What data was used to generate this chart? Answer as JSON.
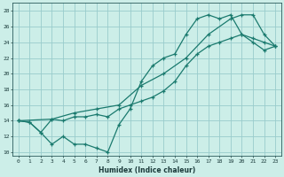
{
  "title": "",
  "xlabel": "Humidex (Indice chaleur)",
  "bg_color": "#cceee8",
  "grid_color": "#99cccc",
  "line_color": "#1a7a6e",
  "xlim": [
    -0.5,
    23.5
  ],
  "ylim": [
    9.5,
    29
  ],
  "xticks": [
    0,
    1,
    2,
    3,
    4,
    5,
    6,
    7,
    8,
    9,
    10,
    11,
    12,
    13,
    14,
    15,
    16,
    17,
    18,
    19,
    20,
    21,
    22,
    23
  ],
  "yticks": [
    10,
    12,
    14,
    16,
    18,
    20,
    22,
    24,
    26,
    28
  ],
  "line1_x": [
    0,
    1,
    2,
    3,
    4,
    5,
    6,
    7,
    8,
    9,
    10,
    11,
    12,
    13,
    14,
    15,
    16,
    17,
    18,
    19,
    20,
    21,
    22,
    23
  ],
  "line1_y": [
    14,
    13.8,
    12.5,
    14.2,
    14.0,
    14.5,
    14.5,
    14.8,
    14.5,
    15.5,
    16.0,
    16.5,
    17.0,
    17.8,
    19.0,
    21.0,
    22.5,
    23.5,
    24.0,
    24.5,
    25.0,
    24.0,
    23.0,
    23.5
  ],
  "line2_x": [
    0,
    1,
    2,
    3,
    4,
    5,
    6,
    7,
    8,
    9,
    10,
    11,
    12,
    13,
    14,
    15,
    16,
    17,
    18,
    19,
    20,
    21,
    22,
    23
  ],
  "line2_y": [
    14,
    13.8,
    12.5,
    11.0,
    12.0,
    11.0,
    11.0,
    10.5,
    10.0,
    13.5,
    15.5,
    19.0,
    21.0,
    22.0,
    22.5,
    25.0,
    27.0,
    27.5,
    27.0,
    27.5,
    25.0,
    24.5,
    24.0,
    23.5
  ],
  "line3_x": [
    0,
    3,
    5,
    7,
    9,
    11,
    13,
    15,
    17,
    19,
    20,
    21,
    22,
    23
  ],
  "line3_y": [
    14,
    14.2,
    15.0,
    15.5,
    16.0,
    18.5,
    20.0,
    22.0,
    25.0,
    27.0,
    27.5,
    27.5,
    25.0,
    23.5
  ]
}
